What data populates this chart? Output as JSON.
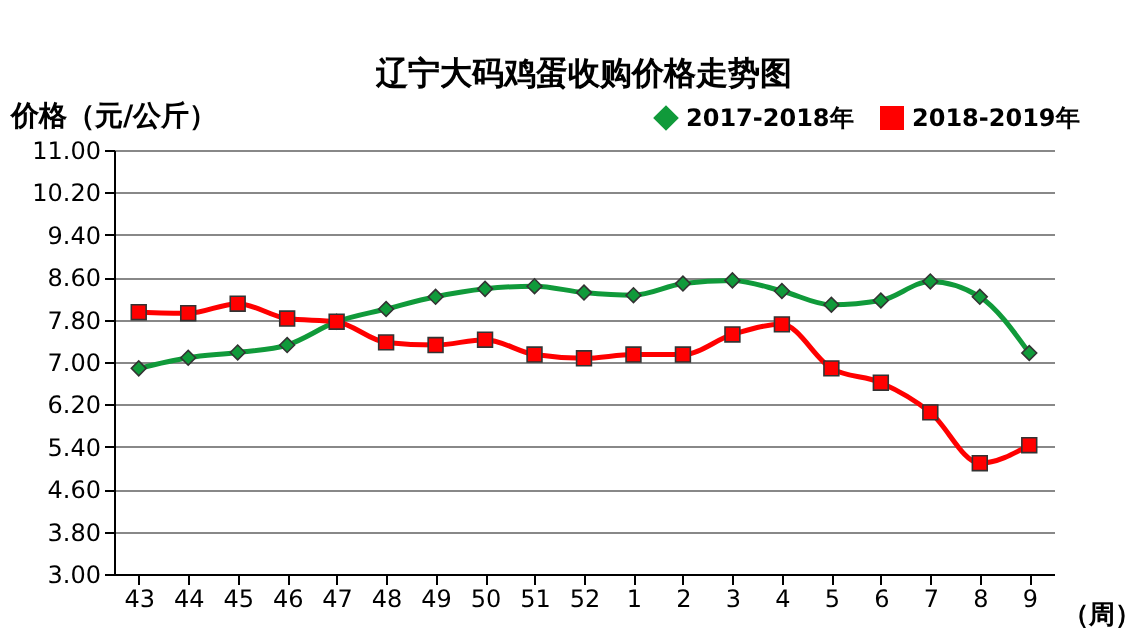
{
  "chart_data": {
    "type": "line",
    "title": "辽宁大码鸡蛋收购价格走势图",
    "ylabel": "价格（元/公斤）",
    "xlabel": "（周）",
    "categories": [
      "43",
      "44",
      "45",
      "46",
      "47",
      "48",
      "49",
      "50",
      "51",
      "52",
      "1",
      "2",
      "3",
      "4",
      "5",
      "6",
      "7",
      "8",
      "9"
    ],
    "series": [
      {
        "name": "2017-2018年",
        "color": "#109a3a",
        "marker": "diamond",
        "values": [
          6.88,
          7.08,
          7.18,
          7.32,
          7.76,
          8.0,
          8.23,
          8.38,
          8.43,
          8.31,
          8.26,
          8.48,
          8.54,
          8.34,
          8.08,
          8.16,
          8.52,
          8.23,
          7.17
        ]
      },
      {
        "name": "2018-2019年",
        "color": "#ff0000",
        "marker": "square",
        "values": [
          7.94,
          7.92,
          8.1,
          7.82,
          7.76,
          7.37,
          7.32,
          7.42,
          7.14,
          7.07,
          7.14,
          7.14,
          7.52,
          7.71,
          6.88,
          6.61,
          6.05,
          5.09,
          5.43
        ]
      }
    ],
    "ylim": [
      3.0,
      11.0
    ],
    "yticks": [
      {
        "value": 3.0,
        "label": "3.00"
      },
      {
        "value": 3.8,
        "label": "3.80"
      },
      {
        "value": 4.6,
        "label": "4.60"
      },
      {
        "value": 5.4,
        "label": "5.40"
      },
      {
        "value": 6.2,
        "label": "6.20"
      },
      {
        "value": 7.0,
        "label": "7.00"
      },
      {
        "value": 7.8,
        "label": "7.80"
      },
      {
        "value": 8.6,
        "label": "8.60"
      },
      {
        "value": 9.4,
        "label": "9.40"
      },
      {
        "value": 10.2,
        "label": "10.20"
      },
      {
        "value": 11.0,
        "label": "11.00"
      }
    ],
    "grid": "y",
    "legend": "top right",
    "line_style": "solid"
  }
}
